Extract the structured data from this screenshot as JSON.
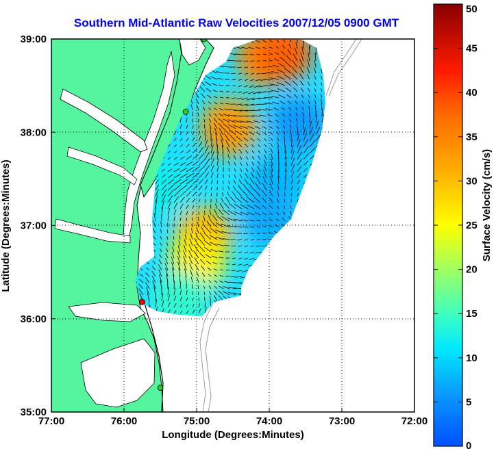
{
  "title": "Southern Mid-Atlantic Raw Velocities 2007/12/05 0900 GMT",
  "xlabel": "Longitude (Degrees:Minutes)",
  "ylabel": "Latitude (Degrees:Minutes)",
  "colorbar_label": "Surface Velocity (cm/s)",
  "x_ticks": [
    "77:00",
    "76:00",
    "75:00",
    "74:00",
    "73:00",
    "72:00"
  ],
  "y_ticks": [
    "39:00",
    "38:00",
    "37:00",
    "36:00",
    "35:00"
  ],
  "colorbar_ticks": [
    "50",
    "45",
    "40",
    "35",
    "30",
    "25",
    "20",
    "15",
    "10",
    "5",
    "0"
  ],
  "colors": {
    "land": "#55f5a0",
    "coast": "#000000",
    "grid": "#000000",
    "bathymetry": "#9a9a9a",
    "site_active": "#22cc22",
    "site_alert": "#ff0000"
  },
  "map_extent": {
    "lon": [
      -77,
      -72
    ],
    "lat": [
      35,
      39
    ]
  },
  "color_range": [
    0,
    50
  ],
  "chart_data": {
    "type": "heatmap",
    "title": "Southern Mid-Atlantic Raw Velocities 2007/12/05 0900 GMT",
    "xlabel": "Longitude (Degrees:Minutes)",
    "ylabel": "Latitude (Degrees:Minutes)",
    "xlim": [
      -77,
      -72
    ],
    "ylim": [
      35,
      39
    ],
    "colorbar": {
      "label": "Surface Velocity (cm/s)",
      "range": [
        0,
        50
      ]
    },
    "grid": true,
    "legend": "right",
    "radar_sites": [
      {
        "lon": -74.9,
        "lat": 39.0,
        "status": "active"
      },
      {
        "lon": -75.15,
        "lat": 38.22,
        "status": "active"
      },
      {
        "lon": -75.75,
        "lat": 36.18,
        "status": "alert"
      },
      {
        "lon": -75.5,
        "lat": 35.26,
        "status": "active"
      }
    ],
    "velocity_features": [
      {
        "lon": -74.55,
        "lat": 38.05,
        "speed": 33
      },
      {
        "lon": -74.05,
        "lat": 38.8,
        "speed": 35
      },
      {
        "lon": -73.8,
        "lat": 38.85,
        "speed": 38
      },
      {
        "lon": -74.9,
        "lat": 36.9,
        "speed": 30
      },
      {
        "lon": -75.0,
        "lat": 36.6,
        "speed": 26
      },
      {
        "lon": -73.9,
        "lat": 37.5,
        "speed": 8
      },
      {
        "lon": -73.6,
        "lat": 38.1,
        "speed": 6
      },
      {
        "lon": -74.0,
        "lat": 37.1,
        "speed": 7
      },
      {
        "lon": -75.5,
        "lat": 37.4,
        "speed": 12
      },
      {
        "lon": -75.2,
        "lat": 36.2,
        "speed": 14
      }
    ]
  }
}
